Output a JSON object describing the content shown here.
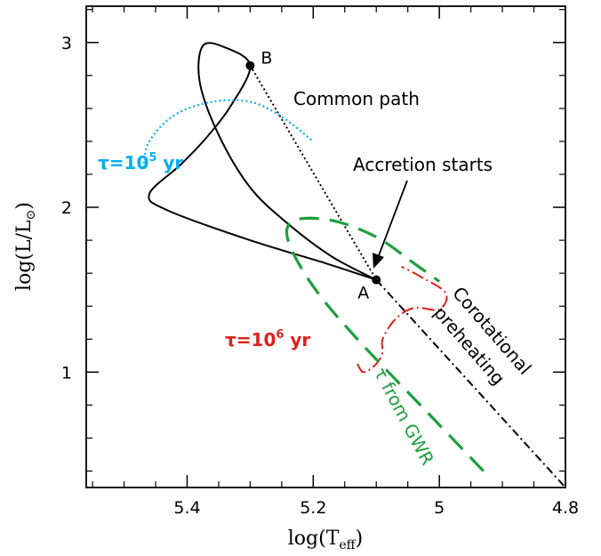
{
  "chart_data": {
    "type": "line",
    "xlabel": "log(T",
    "xlabel_sub": "eff",
    "xlabel_end": ")",
    "ylabel": "log(L/L",
    "ylabel_sub": "⊙",
    "ylabel_end": ")",
    "xlim": [
      5.56,
      4.8
    ],
    "ylim": [
      0.3,
      3.22
    ],
    "x_reversed": true,
    "xticks": [
      5.4,
      5.2,
      5,
      4.8
    ],
    "xtick_labels": [
      "5.4",
      "5.2",
      "5",
      "4.8"
    ],
    "yticks": [
      1,
      2,
      3
    ],
    "ytick_labels": [
      "1",
      "2",
      "3"
    ],
    "series": [
      {
        "key": "loop",
        "color": "#000000",
        "dash": "",
        "points": [
          [
            5.1,
            1.56
          ],
          [
            5.17,
            1.7
          ],
          [
            5.24,
            1.9
          ],
          [
            5.3,
            2.12
          ],
          [
            5.35,
            2.44
          ],
          [
            5.38,
            2.76
          ],
          [
            5.375,
            2.98
          ],
          [
            5.34,
            2.97
          ],
          [
            5.3,
            2.86
          ],
          [
            5.33,
            2.62
          ],
          [
            5.37,
            2.42
          ],
          [
            5.41,
            2.26
          ],
          [
            5.46,
            2.08
          ],
          [
            5.43,
            1.98
          ],
          [
            5.3,
            1.8
          ],
          [
            5.18,
            1.66
          ],
          [
            5.1,
            1.56
          ]
        ]
      },
      {
        "key": "common-path",
        "color": "#000000",
        "dash": "2 3",
        "points": [
          [
            5.3,
            2.86
          ],
          [
            5.1,
            1.56
          ]
        ]
      },
      {
        "key": "corotational-preheating",
        "color": "#000000",
        "dash": "9 4 2 4",
        "points": [
          [
            5.1,
            1.56
          ],
          [
            4.8,
            0.3
          ]
        ]
      },
      {
        "key": "tau-1e5",
        "color": "#00aeef",
        "dash": "2 3",
        "points": [
          [
            5.47,
            2.24
          ],
          [
            5.46,
            2.4
          ],
          [
            5.42,
            2.56
          ],
          [
            5.36,
            2.64
          ],
          [
            5.3,
            2.64
          ],
          [
            5.25,
            2.55
          ],
          [
            5.2,
            2.4
          ]
        ]
      },
      {
        "key": "tau-1e6",
        "color": "#e0201b",
        "dash": "14 4 2 4",
        "points": [
          [
            5.13,
            1.05
          ],
          [
            5.12,
            1.0
          ],
          [
            5.1,
            1.05
          ],
          [
            5.09,
            1.12
          ],
          [
            5.09,
            1.2
          ],
          [
            5.07,
            1.32
          ],
          [
            5.04,
            1.39
          ],
          [
            5.0,
            1.38
          ],
          [
            4.99,
            1.48
          ],
          [
            5.03,
            1.58
          ],
          [
            5.06,
            1.64
          ]
        ]
      },
      {
        "key": "tau-gwr",
        "color": "#1e9e3f",
        "dash": "22 12",
        "points": [
          [
            4.93,
            0.4
          ],
          [
            5.02,
            0.76
          ],
          [
            5.13,
            1.2
          ],
          [
            5.2,
            1.52
          ],
          [
            5.24,
            1.8
          ],
          [
            5.23,
            1.92
          ],
          [
            5.17,
            1.92
          ],
          [
            5.1,
            1.82
          ],
          [
            5.04,
            1.66
          ],
          [
            5.0,
            1.55
          ]
        ]
      }
    ],
    "markers": [
      {
        "label": "A",
        "x": 5.1,
        "y": 1.56
      },
      {
        "label": "B",
        "x": 5.3,
        "y": 2.86
      }
    ],
    "annotations": {
      "common_path": "Common path",
      "accretion_starts": "Accretion starts",
      "corotational": "Corotational",
      "preheating": "preheating",
      "tau_1e5_main": "τ=10",
      "tau_1e5_sup": "5",
      "tau_1e5_unit": " yr",
      "tau_1e6_main": "τ=10",
      "tau_1e6_sup": "6",
      "tau_1e6_unit": " yr",
      "tau_gwr": "τ from GWR"
    },
    "colors": {
      "tau_1e5": "#00aeef",
      "tau_1e6": "#e0201b",
      "tau_gwr": "#1e9e3f"
    },
    "grid": false
  }
}
